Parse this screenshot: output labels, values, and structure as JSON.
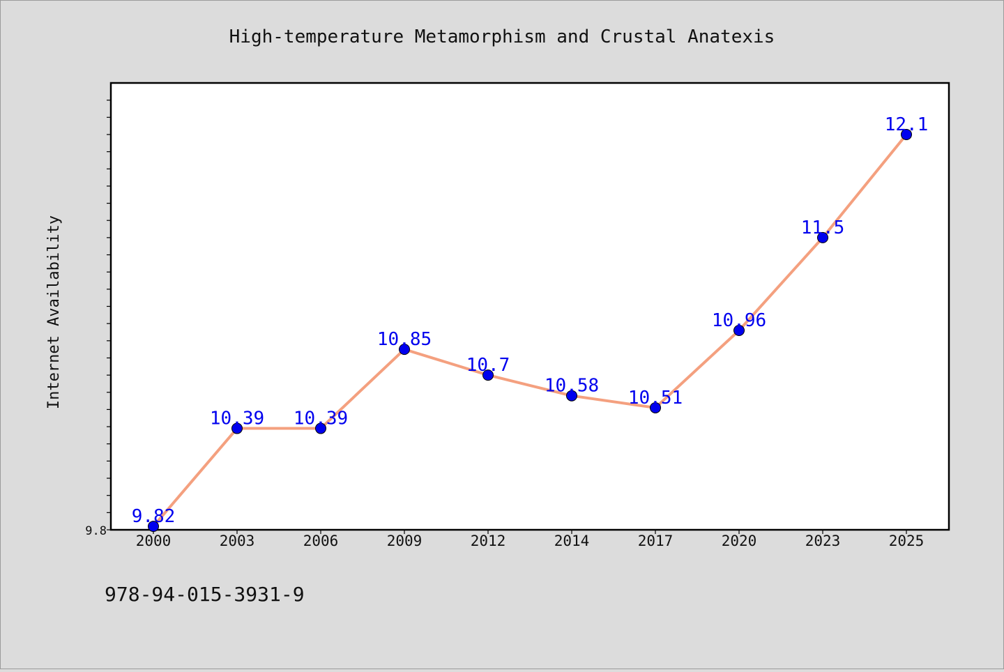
{
  "chart_data": {
    "type": "line",
    "title": "High-temperature Metamorphism and Crustal Anatexis",
    "xlabel": "",
    "ylabel": "Internet Availability",
    "categories": [
      "2000",
      "2003",
      "2006",
      "2009",
      "2012",
      "2014",
      "2017",
      "2020",
      "2023",
      "2025"
    ],
    "series": [
      {
        "values": [
          9.82,
          10.39,
          10.39,
          10.85,
          10.7,
          10.58,
          10.51,
          10.96,
          11.5,
          12.1
        ],
        "labels": [
          "9.82",
          "10.39",
          "10.39",
          "10.85",
          "10.7",
          "10.58",
          "10.51",
          "10.96",
          "11.5",
          "12.1"
        ]
      }
    ],
    "y_tick_label": "9.8",
    "ylim": [
      9.8,
      12.4
    ],
    "grid": false,
    "legend": "none",
    "line_color": "#f4a07f",
    "marker_color": "#0000ee"
  },
  "footer": {
    "isbn": "978-94-015-3931-9"
  }
}
